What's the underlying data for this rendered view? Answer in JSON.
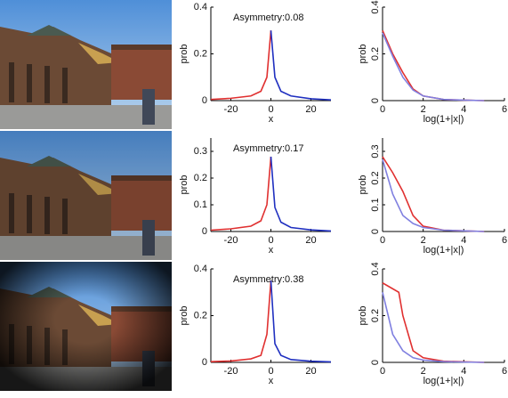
{
  "chart_data": [
    {
      "type": "line",
      "annotation": "Asymmetry:0.08",
      "xlabel": "x",
      "ylabel": "prob",
      "xlim": [
        -30,
        30
      ],
      "xticks": [
        -20,
        0,
        20
      ],
      "ylim": [
        0,
        0.4
      ],
      "yticks": [
        0,
        0.2,
        0.4
      ],
      "series": [
        {
          "color": "#e03030",
          "x": [
            -30,
            -20,
            -10,
            -5,
            -2,
            0
          ],
          "values": [
            0.005,
            0.01,
            0.02,
            0.04,
            0.1,
            0.3
          ]
        },
        {
          "color": "#2030c0",
          "x": [
            0,
            2,
            5,
            10,
            20,
            30
          ],
          "values": [
            0.3,
            0.1,
            0.04,
            0.02,
            0.008,
            0.003
          ]
        }
      ]
    },
    {
      "type": "line",
      "xlabel": "log(1+|x|)",
      "ylabel": "prob",
      "xlim": [
        0,
        6
      ],
      "xticks": [
        0,
        2,
        4,
        6
      ],
      "ylim": [
        0,
        0.4
      ],
      "yticks": [
        0,
        0.2,
        0.4
      ],
      "series": [
        {
          "color": "#e03030",
          "x": [
            0,
            0.5,
            1,
            1.5,
            2,
            3,
            4,
            5
          ],
          "values": [
            0.3,
            0.2,
            0.12,
            0.05,
            0.02,
            0.005,
            0.002,
            0
          ]
        },
        {
          "color": "#8080e0",
          "x": [
            0,
            0.5,
            1,
            1.5,
            2,
            3,
            4,
            5
          ],
          "values": [
            0.29,
            0.19,
            0.1,
            0.045,
            0.02,
            0.005,
            0.002,
            0
          ]
        }
      ]
    },
    {
      "type": "line",
      "annotation": "Asymmetry:0.17",
      "xlabel": "x",
      "ylabel": "prob",
      "xlim": [
        -30,
        30
      ],
      "xticks": [
        -20,
        0,
        20
      ],
      "ylim": [
        0,
        0.35
      ],
      "yticks": [
        0,
        0.1,
        0.2,
        0.3
      ],
      "series": [
        {
          "color": "#e03030",
          "x": [
            -30,
            -20,
            -10,
            -5,
            -2,
            0
          ],
          "values": [
            0.005,
            0.01,
            0.02,
            0.04,
            0.1,
            0.28
          ]
        },
        {
          "color": "#2030c0",
          "x": [
            0,
            2,
            5,
            10,
            20,
            30
          ],
          "values": [
            0.28,
            0.09,
            0.035,
            0.015,
            0.006,
            0.002
          ]
        }
      ]
    },
    {
      "type": "line",
      "xlabel": "log(1+|x|)",
      "ylabel": "prob",
      "xlim": [
        0,
        6
      ],
      "xticks": [
        0,
        2,
        4,
        6
      ],
      "ylim": [
        0,
        0.35
      ],
      "yticks": [
        0,
        0.1,
        0.2,
        0.3
      ],
      "series": [
        {
          "color": "#e03030",
          "x": [
            0,
            0.5,
            1,
            1.5,
            2,
            3,
            5
          ],
          "values": [
            0.28,
            0.22,
            0.15,
            0.06,
            0.02,
            0.005,
            0
          ]
        },
        {
          "color": "#8080e0",
          "x": [
            0,
            0.5,
            1,
            1.5,
            2,
            3,
            5
          ],
          "values": [
            0.27,
            0.14,
            0.06,
            0.03,
            0.015,
            0.005,
            0
          ]
        }
      ]
    },
    {
      "type": "line",
      "annotation": "Asymmetry:0.38",
      "xlabel": "x",
      "ylabel": "prob",
      "xlim": [
        -30,
        30
      ],
      "xticks": [
        -20,
        0,
        20
      ],
      "ylim": [
        0,
        0.4
      ],
      "yticks": [
        0,
        0.2,
        0.4
      ],
      "series": [
        {
          "color": "#e03030",
          "x": [
            -30,
            -20,
            -10,
            -5,
            -2,
            0
          ],
          "values": [
            0.003,
            0.006,
            0.015,
            0.03,
            0.12,
            0.35
          ]
        },
        {
          "color": "#2030c0",
          "x": [
            0,
            2,
            5,
            10,
            20,
            30
          ],
          "values": [
            0.35,
            0.08,
            0.03,
            0.012,
            0.005,
            0.002
          ]
        }
      ]
    },
    {
      "type": "line",
      "xlabel": "log(1+|x|)",
      "ylabel": "prob",
      "xlim": [
        0,
        6
      ],
      "xticks": [
        0,
        2,
        4,
        6
      ],
      "ylim": [
        0,
        0.4
      ],
      "yticks": [
        0,
        0.2,
        0.4
      ],
      "series": [
        {
          "color": "#e03030",
          "x": [
            0,
            0.8,
            1,
            1.5,
            2,
            3,
            5
          ],
          "values": [
            0.34,
            0.3,
            0.2,
            0.05,
            0.02,
            0.005,
            0
          ]
        },
        {
          "color": "#8080e0",
          "x": [
            0,
            0.5,
            1,
            1.5,
            2,
            3,
            5
          ],
          "values": [
            0.3,
            0.12,
            0.05,
            0.02,
            0.01,
            0.003,
            0
          ]
        }
      ]
    }
  ]
}
